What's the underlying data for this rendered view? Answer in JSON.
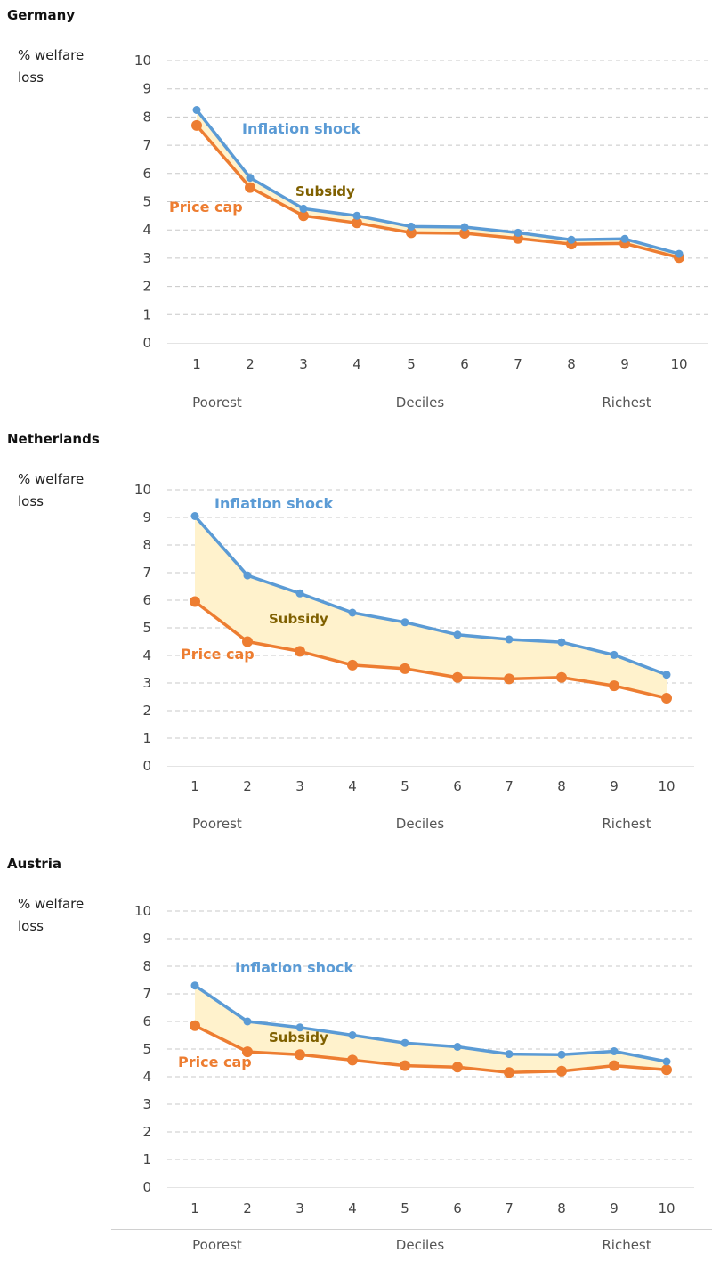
{
  "colors": {
    "inflation": "#5b9bd5",
    "pricecap": "#ed7d31",
    "subsidy_fill": "#fff2cc",
    "subsidy_text": "#7f6000",
    "grid": "#c8c8c8",
    "axis_text": "#444444"
  },
  "chart_data": [
    {
      "type": "line",
      "title": "Germany",
      "ylabel": [
        "% welfare",
        "loss"
      ],
      "ylim": [
        0,
        10
      ],
      "yticks": [
        0,
        1,
        2,
        3,
        4,
        5,
        6,
        7,
        8,
        9,
        10
      ],
      "categories": [
        "1",
        "2",
        "3",
        "4",
        "5",
        "6",
        "7",
        "8",
        "9",
        "10"
      ],
      "xlabels": {
        "left": "Poorest",
        "center": "Deciles",
        "right": "Richest"
      },
      "series": [
        {
          "name": "Inflation shock",
          "values": [
            8.25,
            5.85,
            4.75,
            4.5,
            4.12,
            4.1,
            3.9,
            3.65,
            3.68,
            3.15
          ]
        },
        {
          "name": "Price cap",
          "values": [
            7.7,
            5.5,
            4.5,
            4.25,
            3.9,
            3.88,
            3.7,
            3.5,
            3.52,
            3.02
          ]
        }
      ],
      "area_label": "Subsidy"
    },
    {
      "type": "line",
      "title": "Netherlands",
      "ylabel": [
        "% welfare",
        "loss"
      ],
      "ylim": [
        0,
        10
      ],
      "yticks": [
        0,
        1,
        2,
        3,
        4,
        5,
        6,
        7,
        8,
        9,
        10
      ],
      "categories": [
        "1",
        "2",
        "3",
        "4",
        "5",
        "6",
        "7",
        "8",
        "9",
        "10"
      ],
      "xlabels": {
        "left": "Poorest",
        "center": "Deciles",
        "right": "Richest"
      },
      "series": [
        {
          "name": "Inflation shock",
          "values": [
            9.05,
            6.9,
            6.25,
            5.55,
            5.2,
            4.75,
            4.58,
            4.48,
            4.02,
            3.3
          ]
        },
        {
          "name": "Price cap",
          "values": [
            5.95,
            4.5,
            4.15,
            3.65,
            3.52,
            3.2,
            3.15,
            3.2,
            2.9,
            2.45
          ]
        }
      ],
      "area_label": "Subsidy"
    },
    {
      "type": "line",
      "title": "Austria",
      "ylabel": [
        "% welfare",
        "loss"
      ],
      "ylim": [
        0,
        10
      ],
      "yticks": [
        0,
        1,
        2,
        3,
        4,
        5,
        6,
        7,
        8,
        9,
        10
      ],
      "categories": [
        "1",
        "2",
        "3",
        "4",
        "5",
        "6",
        "7",
        "8",
        "9",
        "10"
      ],
      "xlabels": {
        "left": "Poorest",
        "center": "Deciles",
        "right": "Richest"
      },
      "series": [
        {
          "name": "Inflation shock",
          "values": [
            7.3,
            6.0,
            5.78,
            5.5,
            5.22,
            5.08,
            4.82,
            4.8,
            4.92,
            4.55
          ]
        },
        {
          "name": "Price cap",
          "values": [
            5.85,
            4.9,
            4.8,
            4.6,
            4.4,
            4.35,
            4.15,
            4.2,
            4.4,
            4.25
          ]
        }
      ],
      "area_label": "Subsidy"
    }
  ]
}
